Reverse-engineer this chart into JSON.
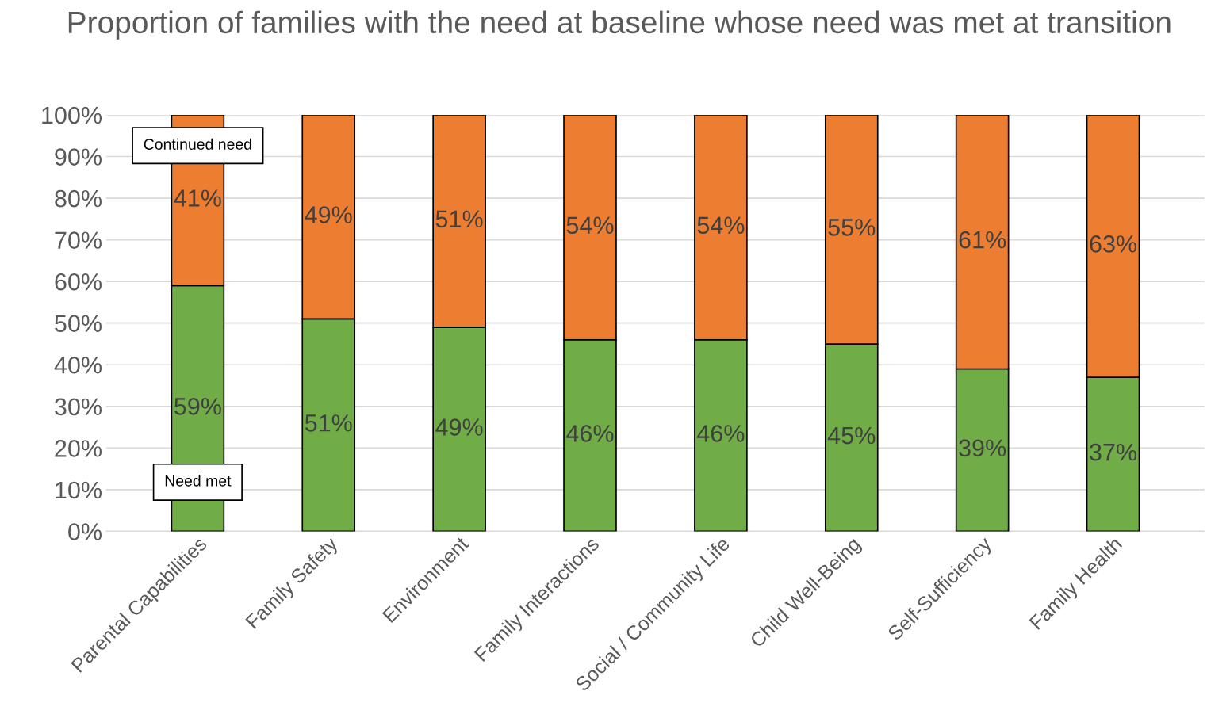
{
  "chart_data": {
    "type": "bar",
    "stacked": true,
    "title": "Proportion of families with the need at baseline whose need was met at transition",
    "categories": [
      "Parental Capabilities",
      "Family Safety",
      "Environment",
      "Family Interactions",
      "Social / Community Life",
      "Child Well-Being",
      "Self-Sufficiency",
      "Family Health"
    ],
    "series": [
      {
        "name": "Need met",
        "color": "#70ad47",
        "values": [
          59,
          51,
          49,
          46,
          46,
          45,
          39,
          37
        ],
        "value_labels": [
          "59%",
          "51%",
          "49%",
          "46%",
          "46%",
          "45%",
          "39%",
          "37%"
        ]
      },
      {
        "name": "Continued need",
        "color": "#ed7d31",
        "values": [
          41,
          49,
          51,
          54,
          54,
          55,
          61,
          63
        ],
        "value_labels": [
          "41%",
          "49%",
          "51%",
          "54%",
          "54%",
          "55%",
          "61%",
          "63%"
        ]
      }
    ],
    "ylim": [
      0,
      100
    ],
    "yticks": [
      {
        "value": 0,
        "label": "0%"
      },
      {
        "value": 10,
        "label": "10%"
      },
      {
        "value": 20,
        "label": "20%"
      },
      {
        "value": 30,
        "label": "30%"
      },
      {
        "value": 40,
        "label": "40%"
      },
      {
        "value": 50,
        "label": "50%"
      },
      {
        "value": 60,
        "label": "60%"
      },
      {
        "value": 70,
        "label": "70%"
      },
      {
        "value": 80,
        "label": "80%"
      },
      {
        "value": 90,
        "label": "90%"
      },
      {
        "value": 100,
        "label": "100%"
      }
    ],
    "grid": "y",
    "legend": false
  }
}
